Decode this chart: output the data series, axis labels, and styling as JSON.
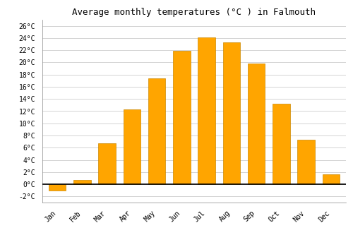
{
  "title": "Average monthly temperatures (°C ) in Falmouth",
  "months": [
    "Jan",
    "Feb",
    "Mar",
    "Apr",
    "May",
    "Jun",
    "Jul",
    "Aug",
    "Sep",
    "Oct",
    "Nov",
    "Dec"
  ],
  "temperatures": [
    -1.0,
    0.7,
    6.7,
    12.3,
    17.4,
    21.9,
    24.1,
    23.3,
    19.8,
    13.2,
    7.3,
    1.6
  ],
  "bar_color": "#FFA500",
  "bar_edge_color": "#CC8800",
  "ylim": [
    -3,
    27
  ],
  "yticks": [
    -2,
    0,
    2,
    4,
    6,
    8,
    10,
    12,
    14,
    16,
    18,
    20,
    22,
    24,
    26
  ],
  "ytick_labels": [
    "-2°C",
    "0°C",
    "2°C",
    "4°C",
    "6°C",
    "8°C",
    "10°C",
    "12°C",
    "14°C",
    "16°C",
    "18°C",
    "20°C",
    "22°C",
    "24°C",
    "26°C"
  ],
  "background_color": "#FFFFFF",
  "grid_color": "#CCCCCC",
  "title_fontsize": 9,
  "tick_fontsize": 7,
  "bar_width": 0.7,
  "zero_line_color": "#000000",
  "spine_color": "#888888"
}
